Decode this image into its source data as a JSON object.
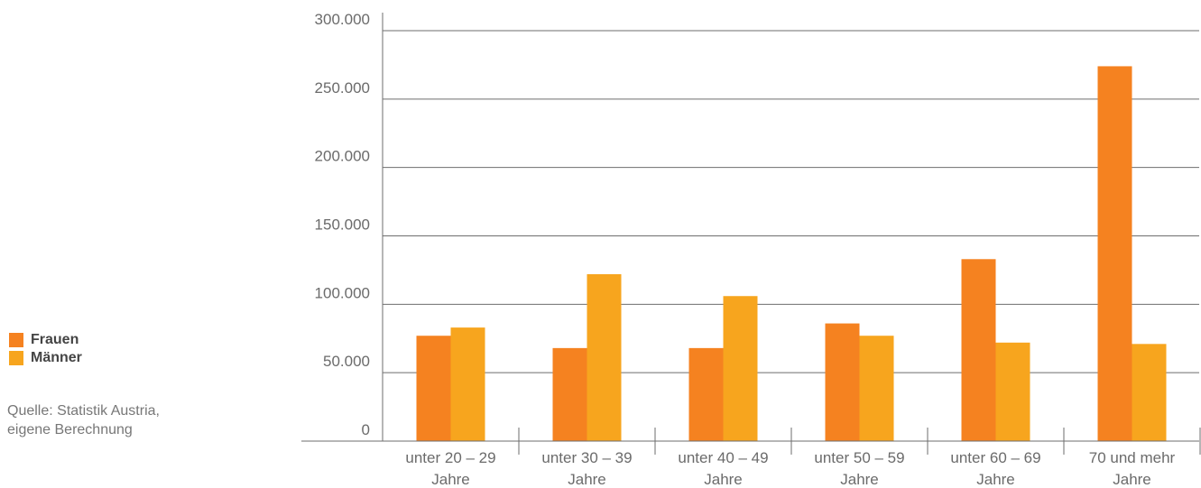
{
  "chart_data": {
    "type": "bar",
    "categories": [
      [
        "unter 20 – 29",
        "Jahre"
      ],
      [
        "unter 30 – 39",
        "Jahre"
      ],
      [
        "unter 40 – 49",
        "Jahre"
      ],
      [
        "unter 50 – 59",
        "Jahre"
      ],
      [
        "unter 60 – 69",
        "Jahre"
      ],
      [
        "70 und mehr",
        "Jahre"
      ]
    ],
    "series": [
      {
        "name": "Frauen",
        "color": "#f58220",
        "values": [
          77000,
          68000,
          68000,
          86000,
          133000,
          274000
        ]
      },
      {
        "name": "Männer",
        "color": "#f7a51e",
        "values": [
          83000,
          122000,
          106000,
          77000,
          72000,
          71000
        ]
      }
    ],
    "yticks": [
      "0",
      "50.000",
      "100.000",
      "150.000",
      "200.000",
      "250.000",
      "300.000"
    ],
    "ylim": [
      0,
      300000
    ],
    "grid": true,
    "legend_placement": "left"
  },
  "legend": {
    "items": [
      {
        "label": "Frauen",
        "color": "#f58220"
      },
      {
        "label": "Männer",
        "color": "#f7a51e"
      }
    ]
  },
  "source": {
    "line1": "Quelle: Statistik Austria,",
    "line2": "eigene Berechnung"
  }
}
